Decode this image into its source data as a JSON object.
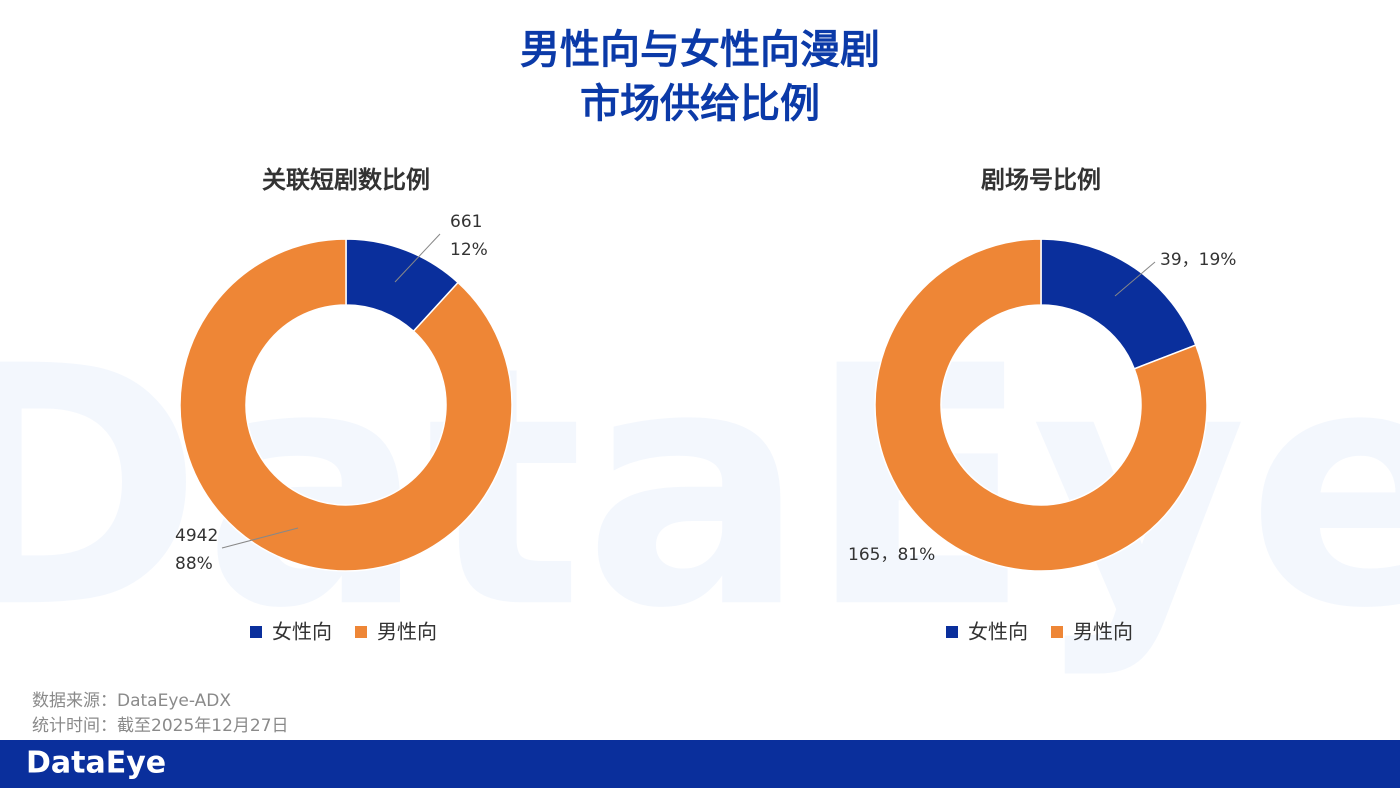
{
  "title_lines": [
    "男性向与女性向漫剧",
    "市场供给比例"
  ],
  "watermark": "DataEye",
  "chart_data": [
    {
      "type": "donut",
      "title": "关联短剧数比例",
      "categories": [
        "女性向",
        "男性向"
      ],
      "values": [
        661,
        4942
      ],
      "value_labels": [
        [
          "661",
          "12%"
        ],
        [
          "4942",
          "88%"
        ]
      ],
      "colors": [
        "#0a2f9c",
        "#ee8636"
      ],
      "legend": "bottom"
    },
    {
      "type": "donut",
      "title": "剧场号比例",
      "categories": [
        "女性向",
        "男性向"
      ],
      "values": [
        39,
        165
      ],
      "value_labels": [
        [
          "39，19%"
        ],
        [
          "165，81%"
        ]
      ],
      "colors": [
        "#0a2f9c",
        "#ee8636"
      ],
      "legend": "bottom"
    }
  ],
  "footer": {
    "source": "数据来源：DataEye-ADX",
    "date": "统计时间：截至2025年12月27日",
    "logo": "DataEye"
  }
}
